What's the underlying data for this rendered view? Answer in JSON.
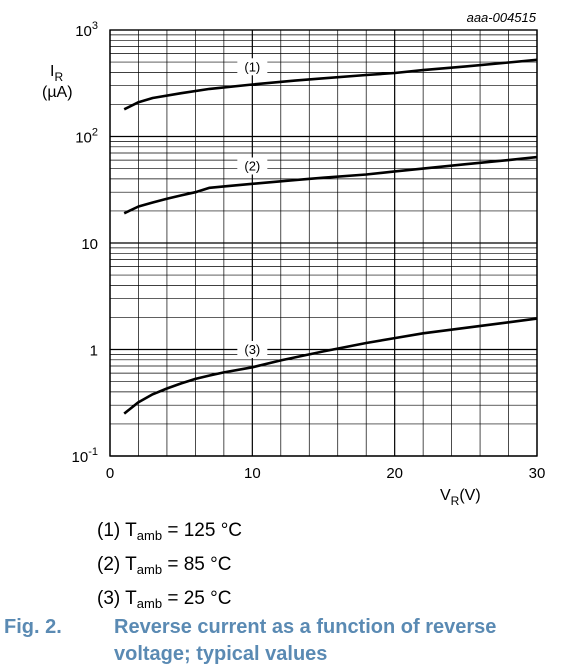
{
  "chart_data": {
    "type": "line",
    "id_label": "aaa-004515",
    "ylabel_main": "I",
    "ylabel_sub": "R",
    "ylabel_unit": "(µA)",
    "xlabel_main": "V",
    "xlabel_sub": "R",
    "xlabel_unit": "(V)",
    "x_range": [
      0,
      30
    ],
    "y_range": [
      0.1,
      1000
    ],
    "y_scale": "log",
    "grid": true,
    "x_ticks": [
      {
        "value": 0,
        "label": "0"
      },
      {
        "value": 10,
        "label": "10"
      },
      {
        "value": 20,
        "label": "20"
      },
      {
        "value": 30,
        "label": "30"
      }
    ],
    "y_ticks": [
      {
        "value": 1000,
        "base": "10",
        "exp": "3"
      },
      {
        "value": 100,
        "base": "10",
        "exp": "2"
      },
      {
        "value": 10,
        "base": "10",
        "exp": ""
      },
      {
        "value": 1,
        "base": "1",
        "exp": ""
      },
      {
        "value": 0.1,
        "base": "10",
        "exp": "-1"
      }
    ],
    "series": [
      {
        "name": "(1)",
        "label_at": {
          "x": 10,
          "y": 316
        },
        "points": [
          [
            1,
            180
          ],
          [
            2,
            210
          ],
          [
            3,
            230
          ],
          [
            5,
            255
          ],
          [
            7,
            280
          ],
          [
            10,
            308
          ],
          [
            13,
            335
          ],
          [
            15,
            352
          ],
          [
            18,
            378
          ],
          [
            20,
            395
          ],
          [
            22,
            420
          ],
          [
            25,
            455
          ],
          [
            28,
            495
          ],
          [
            30,
            525
          ]
        ]
      },
      {
        "name": "(2)",
        "label_at": {
          "x": 10,
          "y": 37
        },
        "points": [
          [
            1,
            19
          ],
          [
            2,
            22
          ],
          [
            3,
            24
          ],
          [
            4,
            26
          ],
          [
            5,
            28
          ],
          [
            6,
            30
          ],
          [
            7,
            33
          ],
          [
            8,
            34
          ],
          [
            10,
            36
          ],
          [
            13,
            39
          ],
          [
            15,
            41
          ],
          [
            18,
            44
          ],
          [
            20,
            47
          ],
          [
            22,
            50
          ],
          [
            25,
            55
          ],
          [
            28,
            60
          ],
          [
            30,
            64
          ]
        ]
      },
      {
        "name": "(3)",
        "label_at": {
          "x": 10,
          "y": 0.7
        },
        "points": [
          [
            1,
            0.25
          ],
          [
            2,
            0.32
          ],
          [
            3,
            0.38
          ],
          [
            4,
            0.43
          ],
          [
            5,
            0.48
          ],
          [
            6,
            0.53
          ],
          [
            7,
            0.57
          ],
          [
            8,
            0.61
          ],
          [
            10,
            0.68
          ],
          [
            12,
            0.79
          ],
          [
            15,
            0.96
          ],
          [
            18,
            1.15
          ],
          [
            20,
            1.28
          ],
          [
            22,
            1.42
          ],
          [
            25,
            1.6
          ],
          [
            28,
            1.8
          ],
          [
            30,
            1.95
          ]
        ]
      }
    ]
  },
  "legend": [
    {
      "prefix": "(1) T",
      "sub": "amb",
      "suffix": " = 125 °C"
    },
    {
      "prefix": "(2) T",
      "sub": "amb",
      "suffix": " = 85 °C"
    },
    {
      "prefix": "(3) T",
      "sub": "amb",
      "suffix": " = 25 °C"
    }
  ],
  "caption": {
    "number": "Fig. 2.",
    "text": "Reverse current as a function of reverse voltage; typical values"
  }
}
